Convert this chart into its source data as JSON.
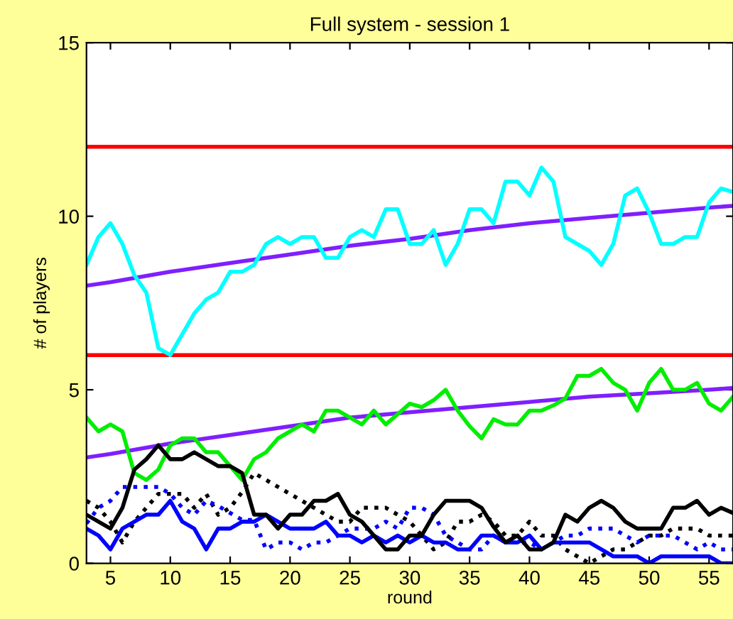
{
  "chart_data": {
    "type": "line",
    "title": "Full system - session 1",
    "xlabel": "round",
    "ylabel": "# of players",
    "x": [
      3,
      4,
      5,
      6,
      7,
      8,
      9,
      10,
      11,
      12,
      13,
      14,
      15,
      16,
      17,
      18,
      19,
      20,
      21,
      22,
      23,
      24,
      25,
      26,
      27,
      28,
      29,
      30,
      31,
      32,
      33,
      34,
      35,
      36,
      37,
      38,
      39,
      40,
      41,
      42,
      43,
      44,
      45,
      46,
      47,
      48,
      49,
      50,
      51,
      52,
      53,
      54,
      55,
      56,
      57
    ],
    "xlim": [
      3,
      57
    ],
    "xticks": [
      5,
      10,
      15,
      20,
      25,
      30,
      35,
      40,
      45,
      50,
      55
    ],
    "ylim": [
      0,
      15
    ],
    "yticks": [
      0,
      5,
      10,
      15
    ],
    "grid": false,
    "marker": "none",
    "ref_lines": [
      {
        "axis": "y",
        "value": 6,
        "color": "#ff0000",
        "line_style": "solid"
      },
      {
        "axis": "y",
        "value": 12,
        "color": "#ff0000",
        "line_style": "solid"
      }
    ],
    "series": [
      {
        "color": "#7f1fff",
        "line_style": "solid",
        "x": [
          3,
          5,
          10,
          15,
          20,
          25,
          30,
          35,
          40,
          45,
          50,
          55,
          57
        ],
        "values": [
          8.0,
          8.1,
          8.4,
          8.65,
          8.9,
          9.15,
          9.35,
          9.6,
          9.8,
          9.95,
          10.1,
          10.25,
          10.3
        ]
      },
      {
        "color": "#7f1fff",
        "line_style": "solid",
        "x": [
          3,
          5,
          10,
          15,
          20,
          25,
          30,
          35,
          40,
          45,
          50,
          55,
          57
        ],
        "values": [
          3.05,
          3.15,
          3.45,
          3.7,
          3.95,
          4.2,
          4.35,
          4.5,
          4.65,
          4.8,
          4.9,
          5.0,
          5.05
        ]
      },
      {
        "color": "#00ffff",
        "line_style": "solid",
        "values": [
          8.6,
          9.4,
          9.8,
          9.2,
          8.3,
          7.8,
          6.2,
          6.0,
          6.6,
          7.2,
          7.6,
          7.8,
          8.4,
          8.4,
          8.6,
          9.2,
          9.4,
          9.2,
          9.4,
          9.4,
          8.8,
          8.8,
          9.4,
          9.6,
          9.4,
          10.2,
          10.2,
          9.2,
          9.2,
          9.6,
          8.6,
          9.2,
          10.2,
          10.2,
          9.8,
          11.0,
          11.0,
          10.6,
          11.4,
          11.0,
          9.4,
          9.2,
          9.0,
          8.6,
          9.2,
          10.6,
          10.8,
          10.1,
          9.2,
          9.2,
          9.4,
          9.4,
          10.4,
          10.8,
          10.7
        ]
      },
      {
        "color": "#00ee00",
        "line_style": "solid",
        "values": [
          4.2,
          3.8,
          4.0,
          3.8,
          2.6,
          2.4,
          2.7,
          3.4,
          3.6,
          3.6,
          3.2,
          3.2,
          2.8,
          2.4,
          3.0,
          3.2,
          3.6,
          3.8,
          4.0,
          3.8,
          4.4,
          4.4,
          4.2,
          4.0,
          4.4,
          4.0,
          4.3,
          4.6,
          4.5,
          4.7,
          5.0,
          4.4,
          3.95,
          3.6,
          4.15,
          4.0,
          4.0,
          4.4,
          4.4,
          4.55,
          4.75,
          5.4,
          5.4,
          5.6,
          5.2,
          5.0,
          4.4,
          5.2,
          5.6,
          5.0,
          5.0,
          5.2,
          4.6,
          4.4,
          4.8
        ]
      },
      {
        "color": "#000000",
        "line_style": "dotted",
        "values": [
          1.8,
          1.6,
          1.2,
          0.6,
          1.2,
          1.6,
          2.0,
          2.0,
          2.0,
          1.6,
          2.0,
          1.4,
          1.6,
          2.05,
          2.6,
          2.4,
          2.2,
          2.0,
          1.8,
          1.6,
          1.4,
          1.2,
          1.2,
          1.6,
          1.6,
          1.6,
          1.4,
          1.2,
          0.8,
          0.4,
          0.6,
          1.2,
          1.2,
          1.4,
          1.2,
          0.8,
          0.8,
          1.2,
          0.8,
          0.8,
          0.4,
          0.2,
          0.0,
          0.2,
          0.4,
          0.4,
          0.6,
          0.8,
          0.8,
          1.0,
          1.0,
          1.0,
          0.8,
          0.8,
          0.8
        ]
      },
      {
        "color": "#0000ff",
        "line_style": "dotted",
        "values": [
          1.15,
          1.6,
          1.8,
          2.2,
          2.2,
          2.2,
          2.2,
          2.0,
          1.6,
          1.4,
          1.8,
          1.65,
          1.45,
          1.25,
          1.25,
          0.4,
          0.6,
          0.6,
          0.4,
          0.6,
          0.6,
          0.8,
          1.0,
          1.0,
          1.0,
          1.2,
          1.0,
          1.6,
          1.6,
          1.4,
          0.8,
          0.6,
          0.4,
          0.4,
          0.8,
          0.6,
          0.6,
          0.6,
          0.4,
          0.6,
          0.8,
          0.8,
          1.0,
          1.0,
          1.0,
          0.8,
          0.6,
          0.8,
          0.8,
          0.8,
          0.6,
          0.4,
          0.6,
          0.4,
          0.4
        ]
      },
      {
        "color": "#0000ff",
        "line_style": "solid",
        "values": [
          1.0,
          0.8,
          0.4,
          1.0,
          1.2,
          1.4,
          1.4,
          1.8,
          1.2,
          1.0,
          0.4,
          1.0,
          1.0,
          1.2,
          1.2,
          1.4,
          1.2,
          1.0,
          1.0,
          1.0,
          1.2,
          0.8,
          0.8,
          0.6,
          0.8,
          0.6,
          0.8,
          0.6,
          0.8,
          0.6,
          0.6,
          0.4,
          0.4,
          0.8,
          0.8,
          0.6,
          0.6,
          0.8,
          0.4,
          0.6,
          0.6,
          0.6,
          0.6,
          0.4,
          0.2,
          0.2,
          0.2,
          0.0,
          0.2,
          0.2,
          0.2,
          0.2,
          0.2,
          0.0,
          0.0
        ]
      },
      {
        "color": "#000000",
        "line_style": "solid",
        "values": [
          1.4,
          1.2,
          1.0,
          1.6,
          2.7,
          3.0,
          3.4,
          3.0,
          3.0,
          3.2,
          3.0,
          2.8,
          2.8,
          2.6,
          1.4,
          1.4,
          1.0,
          1.4,
          1.4,
          1.8,
          1.8,
          2.0,
          1.4,
          1.2,
          0.8,
          0.4,
          0.4,
          0.8,
          0.8,
          1.4,
          1.8,
          1.8,
          1.8,
          1.6,
          1.05,
          0.6,
          0.8,
          0.4,
          0.4,
          0.6,
          1.4,
          1.2,
          1.6,
          1.8,
          1.6,
          1.2,
          1.0,
          1.0,
          1.0,
          1.6,
          1.6,
          1.8,
          1.4,
          1.6,
          1.45
        ]
      }
    ]
  }
}
